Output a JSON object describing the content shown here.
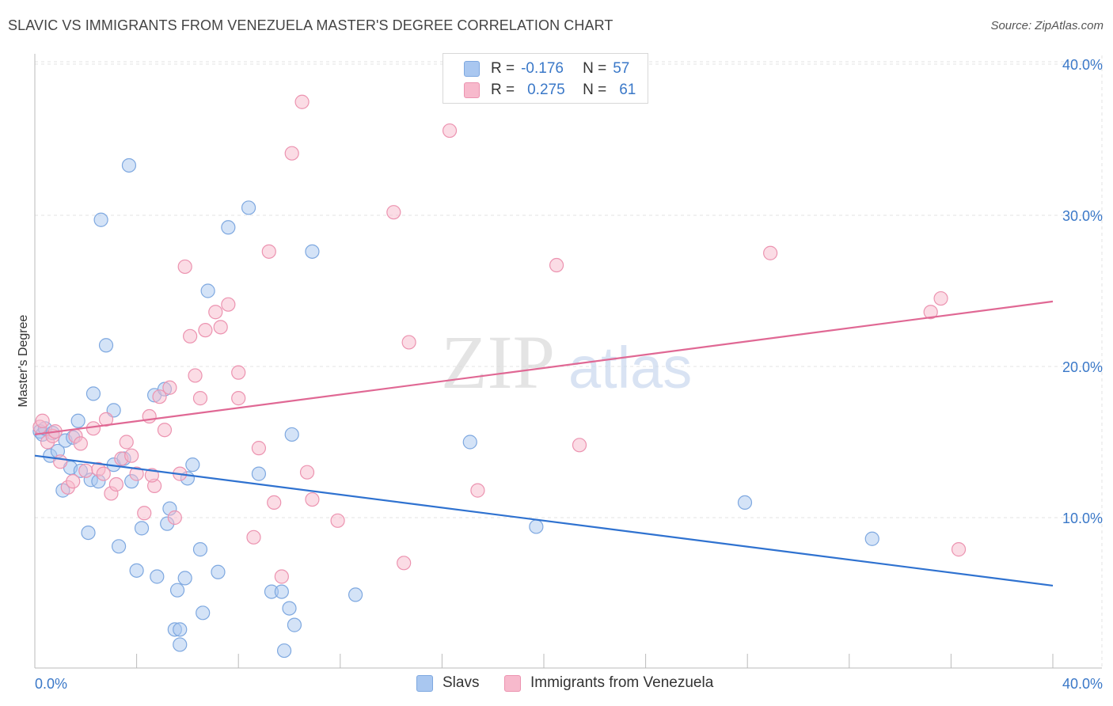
{
  "title": "SLAVIC VS IMMIGRANTS FROM VENEZUELA MASTER'S DEGREE CORRELATION CHART",
  "source": "Source: ZipAtlas.com",
  "watermark": {
    "zip": "ZIP",
    "atlas": "atlas"
  },
  "legend": {
    "r_label": "R =",
    "n_label": "N =",
    "series": [
      {
        "name": "Slavs",
        "r": "-0.176",
        "n": "57",
        "color": "#a9c7f0",
        "stroke": "#7ea8e0"
      },
      {
        "name": "Immigrants from Venezuela",
        "r": "0.275",
        "n": "61",
        "color": "#f7b9cc",
        "stroke": "#ec93b0"
      }
    ]
  },
  "chart_data": {
    "type": "scatter",
    "title": "SLAVIC VS IMMIGRANTS FROM VENEZUELA MASTER'S DEGREE CORRELATION CHART",
    "xlabel": "",
    "ylabel": "Master's Degree",
    "xlim": [
      0,
      40
    ],
    "ylim": [
      0,
      41.5
    ],
    "x_tick_labels": [
      "0.0%",
      "40.0%"
    ],
    "y_ticks": [
      {
        "value": 10,
        "label": "10.0%"
      },
      {
        "value": 20,
        "label": "20.0%"
      },
      {
        "value": 30,
        "label": "30.0%"
      },
      {
        "value": 40,
        "label": "40.0%"
      }
    ],
    "x_minor_ticks": [
      0,
      4,
      8,
      12,
      16,
      20,
      24,
      28,
      32,
      36,
      40
    ],
    "grid": true,
    "legend_position": "top-center",
    "series": [
      {
        "name": "Slavs",
        "color": "#a9c7f0",
        "stroke": "#7ea8e0",
        "trend_color": "#2f72d0",
        "trend": {
          "x0": 0,
          "y0": 14.1,
          "x1": 40,
          "y1": 5.5
        },
        "points": [
          [
            0.2,
            15.7
          ],
          [
            0.3,
            15.5
          ],
          [
            0.4,
            15.9
          ],
          [
            0.6,
            14.1
          ],
          [
            0.7,
            15.6
          ],
          [
            0.9,
            14.4
          ],
          [
            1.1,
            11.8
          ],
          [
            1.2,
            15.1
          ],
          [
            1.4,
            13.3
          ],
          [
            1.5,
            15.3
          ],
          [
            1.7,
            16.4
          ],
          [
            1.8,
            13.1
          ],
          [
            2.1,
            9.0
          ],
          [
            2.2,
            12.5
          ],
          [
            2.3,
            18.2
          ],
          [
            2.5,
            12.4
          ],
          [
            2.6,
            29.7
          ],
          [
            2.8,
            21.4
          ],
          [
            3.1,
            13.5
          ],
          [
            3.1,
            17.1
          ],
          [
            3.3,
            8.1
          ],
          [
            3.5,
            13.9
          ],
          [
            3.7,
            33.3
          ],
          [
            3.8,
            12.4
          ],
          [
            4.0,
            6.5
          ],
          [
            4.2,
            9.3
          ],
          [
            4.7,
            18.1
          ],
          [
            4.8,
            6.1
          ],
          [
            5.1,
            18.5
          ],
          [
            5.2,
            9.6
          ],
          [
            5.3,
            10.6
          ],
          [
            5.5,
            2.6
          ],
          [
            5.6,
            5.2
          ],
          [
            5.7,
            1.6
          ],
          [
            5.7,
            2.6
          ],
          [
            5.9,
            6.0
          ],
          [
            6.0,
            12.6
          ],
          [
            6.2,
            13.5
          ],
          [
            6.5,
            7.9
          ],
          [
            6.6,
            3.7
          ],
          [
            6.8,
            25.0
          ],
          [
            7.2,
            6.4
          ],
          [
            7.6,
            29.2
          ],
          [
            8.4,
            30.5
          ],
          [
            8.8,
            12.9
          ],
          [
            9.3,
            5.1
          ],
          [
            9.7,
            5.1
          ],
          [
            9.8,
            1.2
          ],
          [
            10.0,
            4.0
          ],
          [
            10.1,
            15.5
          ],
          [
            10.2,
            2.9
          ],
          [
            10.9,
            27.6
          ],
          [
            12.6,
            4.9
          ],
          [
            17.1,
            15.0
          ],
          [
            19.7,
            9.4
          ],
          [
            27.9,
            11.0
          ],
          [
            32.9,
            8.6
          ]
        ]
      },
      {
        "name": "Immigrants from Venezuela",
        "color": "#f7b9cc",
        "stroke": "#ec93b0",
        "trend_color": "#e06894",
        "trend": {
          "x0": 0,
          "y0": 15.5,
          "x1": 40,
          "y1": 24.3
        },
        "points": [
          [
            0.2,
            16.0
          ],
          [
            0.3,
            16.4
          ],
          [
            0.5,
            15.0
          ],
          [
            0.7,
            15.4
          ],
          [
            0.8,
            15.7
          ],
          [
            1.0,
            13.7
          ],
          [
            1.3,
            12.0
          ],
          [
            1.5,
            12.4
          ],
          [
            1.6,
            15.4
          ],
          [
            1.8,
            14.9
          ],
          [
            2.0,
            13.1
          ],
          [
            2.3,
            15.9
          ],
          [
            2.5,
            13.2
          ],
          [
            2.7,
            12.9
          ],
          [
            2.8,
            16.5
          ],
          [
            3.0,
            11.6
          ],
          [
            3.2,
            12.2
          ],
          [
            3.4,
            13.9
          ],
          [
            3.6,
            15.0
          ],
          [
            3.8,
            14.1
          ],
          [
            4.0,
            12.9
          ],
          [
            4.3,
            10.3
          ],
          [
            4.5,
            16.7
          ],
          [
            4.7,
            12.1
          ],
          [
            4.9,
            18.0
          ],
          [
            5.1,
            15.8
          ],
          [
            5.3,
            18.6
          ],
          [
            5.5,
            10.0
          ],
          [
            5.7,
            12.9
          ],
          [
            5.9,
            26.6
          ],
          [
            6.1,
            22.0
          ],
          [
            6.3,
            19.4
          ],
          [
            6.5,
            17.9
          ],
          [
            6.7,
            22.4
          ],
          [
            7.1,
            23.6
          ],
          [
            7.3,
            22.6
          ],
          [
            7.6,
            24.1
          ],
          [
            8.0,
            19.6
          ],
          [
            8.0,
            17.9
          ],
          [
            8.6,
            8.7
          ],
          [
            8.8,
            14.6
          ],
          [
            9.2,
            27.6
          ],
          [
            9.4,
            11.0
          ],
          [
            9.7,
            6.1
          ],
          [
            10.1,
            34.1
          ],
          [
            10.5,
            37.5
          ],
          [
            10.7,
            13.0
          ],
          [
            10.9,
            11.2
          ],
          [
            11.9,
            9.8
          ],
          [
            14.1,
            30.2
          ],
          [
            14.5,
            7.0
          ],
          [
            14.7,
            21.6
          ],
          [
            16.3,
            35.6
          ],
          [
            17.4,
            11.8
          ],
          [
            20.5,
            26.7
          ],
          [
            21.4,
            14.8
          ],
          [
            28.9,
            27.5
          ],
          [
            35.2,
            23.6
          ],
          [
            35.6,
            24.5
          ],
          [
            36.3,
            7.9
          ],
          [
            4.6,
            12.8
          ]
        ]
      }
    ]
  }
}
